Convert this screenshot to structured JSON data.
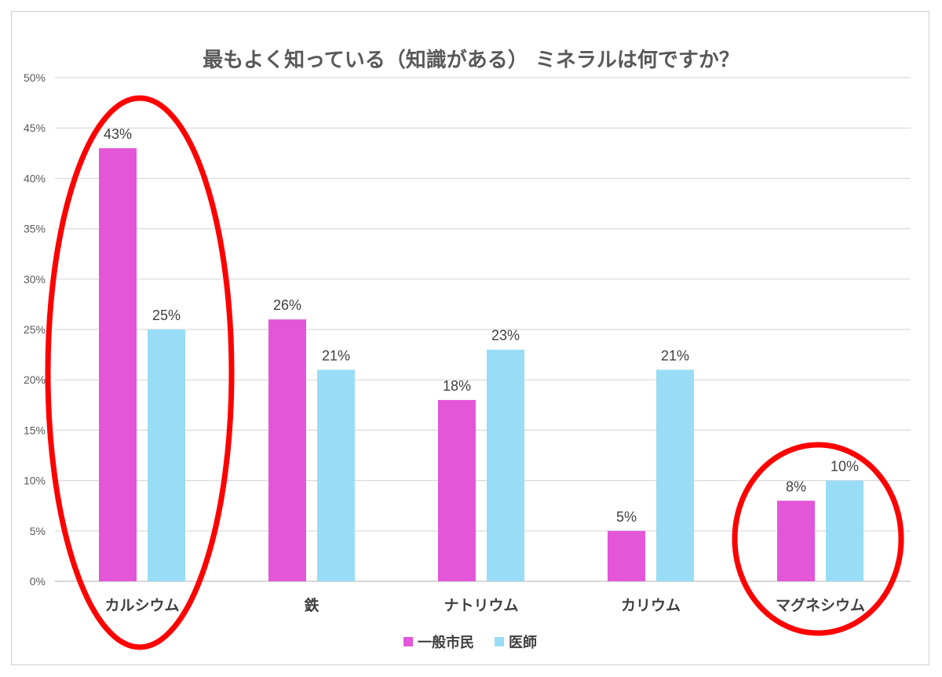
{
  "chart_data": {
    "type": "bar",
    "title": "最もよく知っている（知識がある） ミネラルは何ですか？",
    "categories": [
      "カルシウム",
      "鉄",
      "ナトリウム",
      "カリウム",
      "マグネシウム"
    ],
    "series": [
      {
        "name": "一般市民",
        "values": [
          43,
          26,
          18,
          5,
          8
        ],
        "labels": [
          "43%",
          "26%",
          "18%",
          "5%",
          "8%"
        ],
        "color": "#E356D8"
      },
      {
        "name": "医師",
        "values": [
          25,
          21,
          23,
          21,
          10
        ],
        "labels": [
          "25%",
          "21%",
          "23%",
          "21%",
          "10%"
        ],
        "color": "#99DCF5"
      }
    ],
    "ylim": [
      0,
      50
    ],
    "ytick_values": [
      0,
      5,
      10,
      15,
      20,
      25,
      30,
      35,
      40,
      45,
      50
    ],
    "ytick_labels": [
      "0%",
      "5%",
      "10%",
      "15%",
      "20%",
      "25%",
      "30%",
      "35%",
      "40%",
      "45%",
      "50%"
    ],
    "grid": true,
    "legend_position": "bottom",
    "highlighted_categories": [
      "カルシウム",
      "マグネシウム"
    ],
    "highlight_color": "#FF0000"
  }
}
